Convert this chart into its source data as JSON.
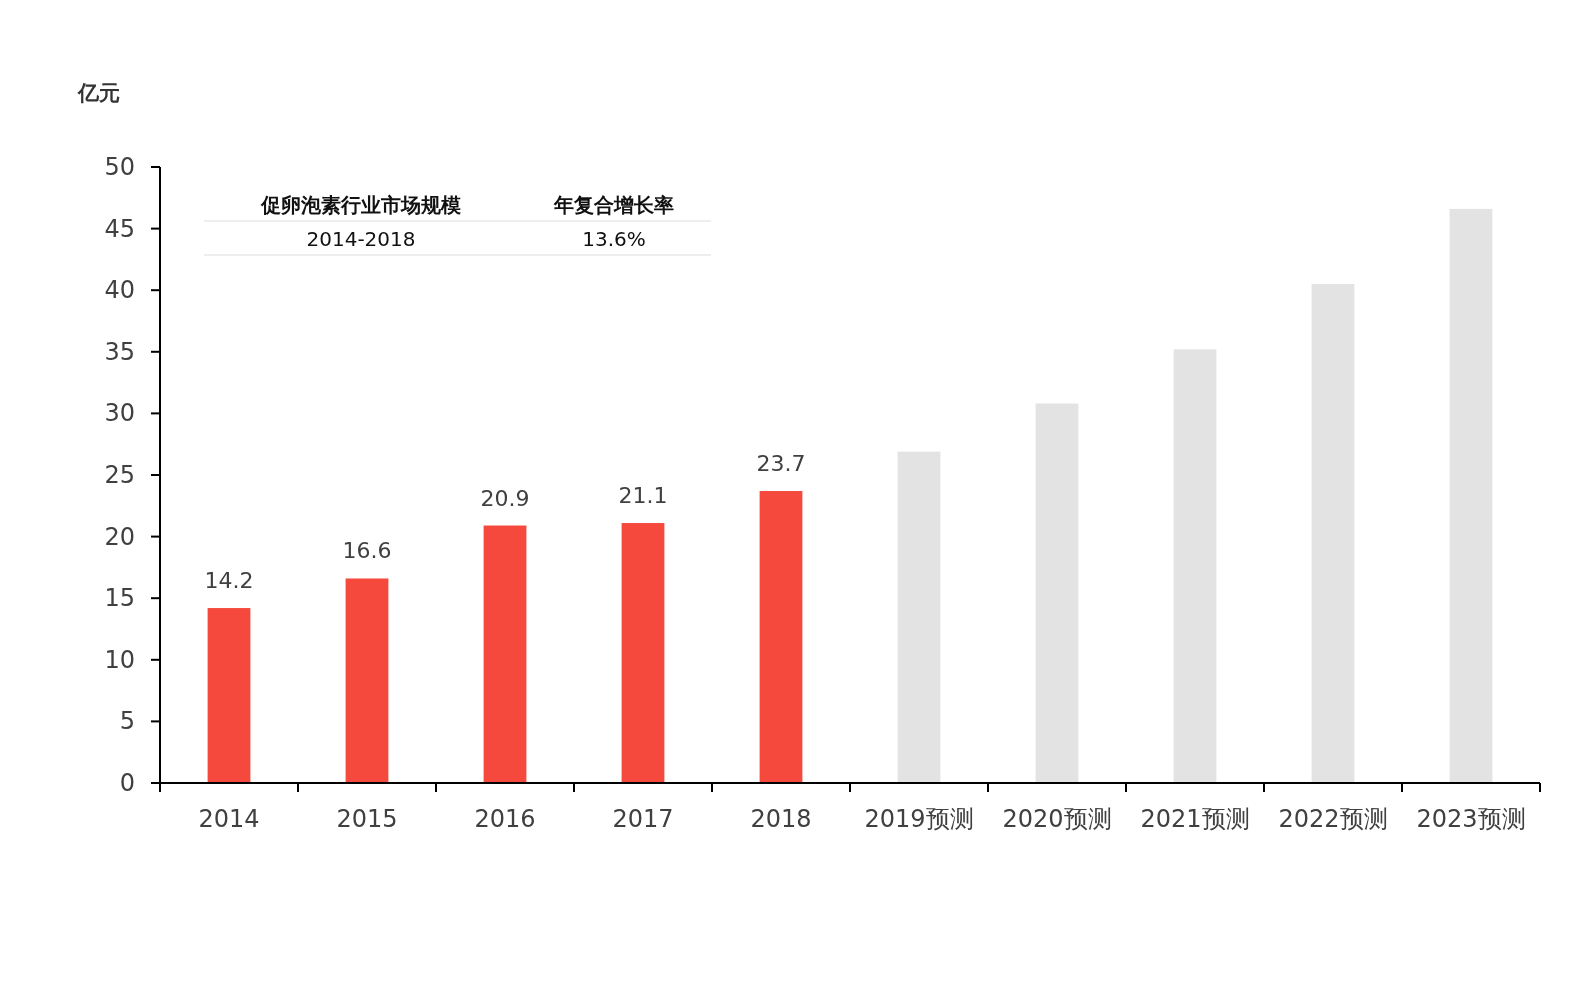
{
  "chart_data": {
    "type": "bar",
    "ylabel": "亿元",
    "categories": [
      "2014",
      "2015",
      "2016",
      "2017",
      "2018",
      "2019预测",
      "2020预测",
      "2021预测",
      "2022预测",
      "2023预测"
    ],
    "values": [
      14.2,
      16.6,
      20.9,
      21.1,
      23.7,
      26.9,
      30.8,
      35.2,
      40.5,
      46.6
    ],
    "colors": [
      "#f4493c",
      "#f4493c",
      "#f4493c",
      "#f4493c",
      "#f4493c",
      "#e3e3e3",
      "#e3e3e3",
      "#e3e3e3",
      "#e3e3e3",
      "#e3e3e3"
    ],
    "value_labels": [
      "14.2",
      "16.6",
      "20.9",
      "21.1",
      "23.7",
      null,
      null,
      null,
      null,
      null
    ],
    "ylim": [
      0,
      50
    ],
    "yticks": [
      0,
      5,
      10,
      15,
      20,
      25,
      30,
      35,
      40,
      45,
      50
    ],
    "annotations": [
      "促卵泡素行业市场规模",
      "年复合增长率",
      "2014-2018",
      "13.6%"
    ]
  }
}
